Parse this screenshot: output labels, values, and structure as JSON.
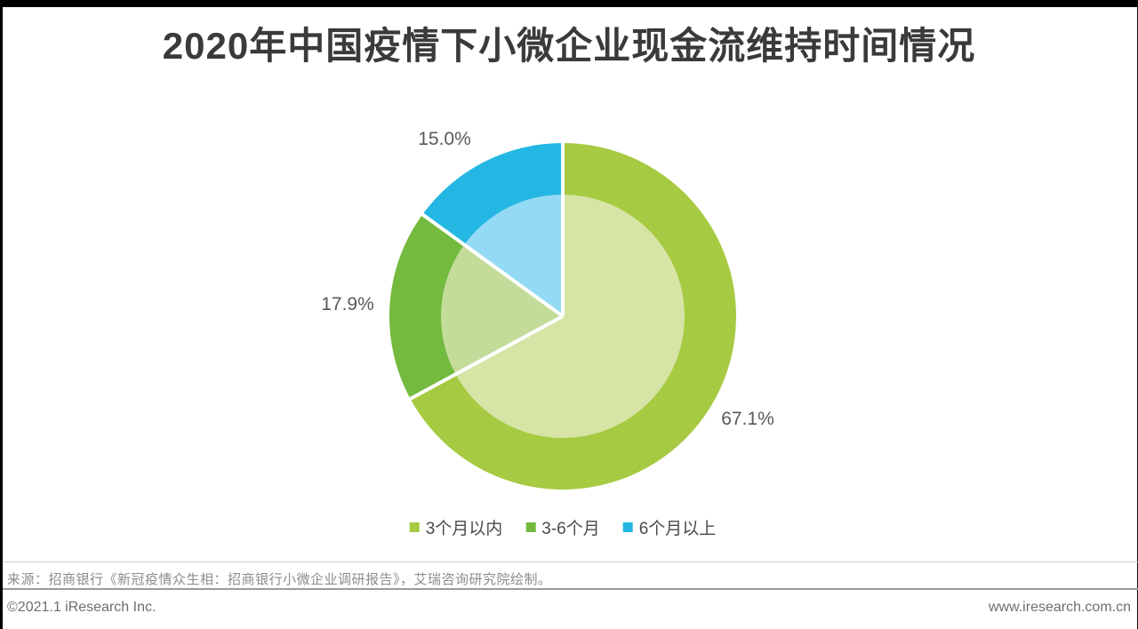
{
  "page": {
    "title": "2020年中国疫情下小微企业现金流维持时间情况",
    "source_note": "来源：招商银行《新冠疫情众生相：招商银行小微企业调研报告》，艾瑞咨询研究院绘制。",
    "footer": {
      "copyright": "©2021.1 iResearch Inc.",
      "website": "www.iresearch.com.cn"
    }
  },
  "chart_data": {
    "type": "pie",
    "title": "2020年中国疫情下小微企业现金流维持时间情况",
    "start_angle_deg": 0,
    "direction": "clockwise",
    "style": "two-tone pie: saturated outer ring with 50%-tint inner disc, white radial dividers",
    "slices": [
      {
        "label": "3个月以内",
        "value": 67.1,
        "display": "67.1%",
        "color": "#a6ca41",
        "inner_color": "#d6e5a5"
      },
      {
        "label": "3-6个月",
        "value": 17.9,
        "display": "17.9%",
        "color": "#74ba3f",
        "inner_color": "#c3dc9a"
      },
      {
        "label": "6个月以上",
        "value": 15.0,
        "display": "15.0%",
        "color": "#25b7e3",
        "inner_color": "#95daf4"
      }
    ],
    "legend_position": "bottom",
    "value_label_color": "#595959"
  }
}
